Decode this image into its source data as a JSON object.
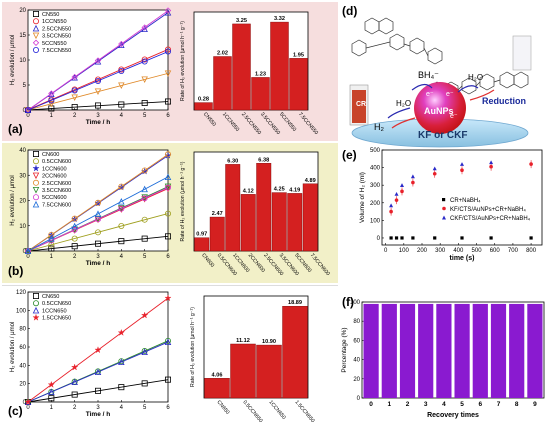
{
  "panels": {
    "a": "(a)",
    "b": "(b)",
    "c": "(c)",
    "d": "(d)",
    "e": "(e)",
    "f": "(f)"
  },
  "chart_data": [
    {
      "id": "a-line",
      "type": "scatter",
      "ylabel": "H₂ evolution / μmol",
      "xlabel": "Time / h",
      "xlim": [
        0,
        6
      ],
      "xticks": [
        0,
        1,
        2,
        3,
        4,
        5,
        6
      ],
      "ylim": [
        0,
        20
      ],
      "yticks": [
        0,
        5,
        10,
        15,
        20
      ],
      "x": [
        0,
        1,
        2,
        3,
        4,
        5,
        6
      ],
      "series": [
        {
          "name": "CN550",
          "marker": "square",
          "color": "#000000",
          "values": [
            0,
            0.3,
            0.6,
            0.9,
            1.1,
            1.4,
            1.7
          ]
        },
        {
          "name": "1CCN550",
          "marker": "circle",
          "color": "#e8202a",
          "values": [
            0,
            2.1,
            4.1,
            6.1,
            8.1,
            10.1,
            12.1
          ]
        },
        {
          "name": "2.5CCN550",
          "marker": "triangle",
          "color": "#2a2ac8",
          "values": [
            0,
            3.2,
            6.5,
            9.7,
            13.0,
            16.2,
            19.5
          ]
        },
        {
          "name": "3.5CCN550",
          "marker": "tri-down",
          "color": "#e08a2a",
          "values": [
            0,
            1.2,
            2.5,
            3.7,
            4.9,
            6.1,
            7.3
          ]
        },
        {
          "name": "5CCN550",
          "marker": "diamond",
          "color": "#d23cd2",
          "values": [
            0,
            3.3,
            6.6,
            9.9,
            13.2,
            16.5,
            19.9
          ]
        },
        {
          "name": "7.5CCN550",
          "marker": "circle",
          "color": "#2020d8",
          "values": [
            0,
            1.9,
            3.9,
            5.8,
            7.8,
            9.7,
            11.7
          ]
        }
      ]
    },
    {
      "id": "a-bar",
      "type": "bar",
      "ylabel": "Rate of H₂ evolution (μmol h⁻¹ g⁻¹)",
      "categories": [
        "CN550",
        "1CCN550",
        "2.5CCN550",
        "3.5CCN550",
        "5CCN550",
        "7.5CCN550"
      ],
      "values": [
        0.28,
        2.02,
        3.25,
        1.23,
        3.32,
        1.95
      ],
      "labels": [
        "0.28",
        "2.02",
        "3.25",
        "1.23",
        "3.32",
        "1.95"
      ],
      "ylim": [
        0,
        3.7
      ]
    },
    {
      "id": "b-line",
      "type": "scatter",
      "ylabel": "H₂ evolution / μmol",
      "xlabel": "Time / h",
      "xlim": [
        0,
        6
      ],
      "xticks": [
        0,
        1,
        2,
        3,
        4,
        5,
        6
      ],
      "ylim": [
        0,
        40
      ],
      "yticks": [
        0,
        10,
        20,
        30,
        40
      ],
      "x": [
        0,
        1,
        2,
        3,
        4,
        5,
        6
      ],
      "series": [
        {
          "name": "CN600",
          "marker": "square",
          "color": "#000000",
          "values": [
            0,
            0.97,
            1.9,
            2.9,
            3.9,
            4.9,
            5.8
          ]
        },
        {
          "name": "0.5CCN600",
          "marker": "circle",
          "color": "#a0a020",
          "values": [
            0,
            2.5,
            4.9,
            7.4,
            9.9,
            12.4,
            14.8
          ]
        },
        {
          "name": "1CCN600",
          "marker": "star",
          "color": "#2a2ac8",
          "values": [
            0,
            6.3,
            12.6,
            18.9,
            25.2,
            31.5,
            37.8
          ]
        },
        {
          "name": "2CCN600",
          "marker": "tri-down",
          "color": "#e8202a",
          "values": [
            0,
            4.1,
            8.2,
            12.4,
            16.5,
            20.6,
            24.7
          ]
        },
        {
          "name": "2.5CCN600",
          "marker": "circle",
          "color": "#e08a2a",
          "values": [
            0,
            6.4,
            12.8,
            19.1,
            25.5,
            31.9,
            38.3
          ]
        },
        {
          "name": "3.5CCN600",
          "marker": "tri-down",
          "color": "#2a8a2a",
          "values": [
            0,
            4.25,
            8.5,
            12.75,
            17.0,
            21.25,
            25.5
          ]
        },
        {
          "name": "5CCN600",
          "marker": "circle",
          "color": "#d23cd2",
          "values": [
            0,
            4.19,
            8.4,
            12.6,
            16.8,
            20.9,
            25.1
          ]
        },
        {
          "name": "7.5CCN600",
          "marker": "triangle",
          "color": "#1a6ad8",
          "values": [
            0,
            4.89,
            9.8,
            14.7,
            19.6,
            24.5,
            29.3
          ]
        }
      ]
    },
    {
      "id": "b-bar",
      "type": "bar",
      "ylabel": "Rate of H₂ evolution (μmol h⁻¹ g⁻¹)",
      "categories": [
        "CN600",
        "0.5CCN600",
        "1CCN600",
        "2CCN600",
        "2.5CCN600",
        "3.5CCN600",
        "5CCN600",
        "7.5CCN600"
      ],
      "values": [
        0.97,
        2.47,
        6.3,
        4.12,
        6.38,
        4.25,
        4.19,
        4.89
      ],
      "labels": [
        "0.97",
        "2.47",
        "6.30",
        "4.12",
        "6.38",
        "4.25",
        "4.19",
        "4.89"
      ],
      "ylim": [
        0,
        7.2
      ]
    },
    {
      "id": "c-line",
      "type": "scatter",
      "ylabel": "H₂ evolution / μmol",
      "xlabel": "Time / h",
      "xlim": [
        0,
        6
      ],
      "xticks": [
        0,
        1,
        2,
        3,
        4,
        5,
        6
      ],
      "ylim": [
        0,
        120
      ],
      "yticks": [
        0,
        20,
        40,
        60,
        80,
        100,
        120
      ],
      "x": [
        0,
        1,
        2,
        3,
        4,
        5,
        6
      ],
      "series": [
        {
          "name": "CN650",
          "marker": "square",
          "color": "#000000",
          "values": [
            0,
            4.1,
            8.1,
            12.2,
            16.2,
            20.3,
            24.4
          ]
        },
        {
          "name": "0.5CCN650",
          "marker": "circle",
          "color": "#2a8a2a",
          "values": [
            0,
            11.1,
            22.2,
            33.4,
            44.5,
            55.6,
            66.7
          ]
        },
        {
          "name": "1CCN650",
          "marker": "triangle",
          "color": "#2a2ac8",
          "values": [
            0,
            10.9,
            21.8,
            32.7,
            43.6,
            54.5,
            65.4
          ]
        },
        {
          "name": "1.5CCN650",
          "marker": "star",
          "color": "#e8202a",
          "values": [
            0,
            18.9,
            37.8,
            56.7,
            75.6,
            94.5,
            113.3
          ]
        }
      ]
    },
    {
      "id": "c-bar",
      "type": "bar",
      "ylabel": "Rate of H₂ evolution (μmol h⁻¹ g⁻¹)",
      "categories": [
        "CN650",
        "0.5CCN650",
        "1CCN650",
        "1.5CCN650"
      ],
      "values": [
        4.06,
        11.12,
        10.9,
        18.89
      ],
      "labels": [
        "4.06",
        "11.12",
        "10.90",
        "18.89"
      ],
      "ylim": [
        0,
        21
      ]
    },
    {
      "id": "e",
      "type": "scatter",
      "ylabel": "Volume of H₂ (ml)",
      "xlabel": "time (s)",
      "xlim": [
        -20,
        860
      ],
      "xticks": [
        0,
        100,
        200,
        300,
        400,
        500,
        600,
        700,
        800
      ],
      "ylim": [
        -40,
        500
      ],
      "yticks": [
        0,
        100,
        200,
        300,
        400,
        500
      ],
      "series": [
        {
          "name": "CR+NaBH₄",
          "marker": "square",
          "color": "#000000",
          "x": [
            30,
            60,
            90,
            150,
            270,
            420,
            580,
            800
          ],
          "values": [
            0,
            0,
            0,
            0,
            0,
            0,
            0,
            0
          ]
        },
        {
          "name": "KF/CTS/AuNPs+CR+NaBH₄",
          "marker": "circle",
          "color": "#e8202a",
          "x": [
            30,
            60,
            90,
            150,
            270,
            420,
            580,
            800
          ],
          "values": [
            150,
            215,
            265,
            315,
            365,
            385,
            405,
            420
          ]
        },
        {
          "name": "CKF/CTS/AuNPs+CR+NaBH₄",
          "marker": "triangle",
          "color": "#2a2ac8",
          "x": [
            30,
            60,
            90,
            150,
            270,
            420,
            580
          ],
          "values": [
            185,
            250,
            300,
            350,
            395,
            420,
            430
          ]
        }
      ]
    },
    {
      "id": "f",
      "type": "bar",
      "ylabel": "Percentage (%)",
      "xlabel": "Recovery times",
      "categories": [
        "0",
        "1",
        "2",
        "3",
        "4",
        "5",
        "6",
        "7",
        "8",
        "9"
      ],
      "values": [
        98,
        98,
        98,
        98,
        98,
        98,
        98,
        98,
        98,
        98
      ],
      "ylim": [
        0,
        100
      ],
      "yticks": [
        0,
        20,
        40,
        60,
        80,
        100
      ]
    }
  ],
  "scheme": {
    "labels": {
      "bh4": "BH₄⁻",
      "h2o_left": "H₂O",
      "h2o_right": "H₂O",
      "h2": "H₂",
      "reduction": "Reduction",
      "aunps": "AuNPs",
      "support": "KF or CKF",
      "cr": "CR",
      "e1": "e⁻",
      "e2": "e⁻",
      "e3": "e⁻"
    },
    "colors": {
      "sphere": "#d8203a",
      "support": "#a8d8f0",
      "dye_left": "#c0402a",
      "vial": "#e8e8f0"
    }
  }
}
